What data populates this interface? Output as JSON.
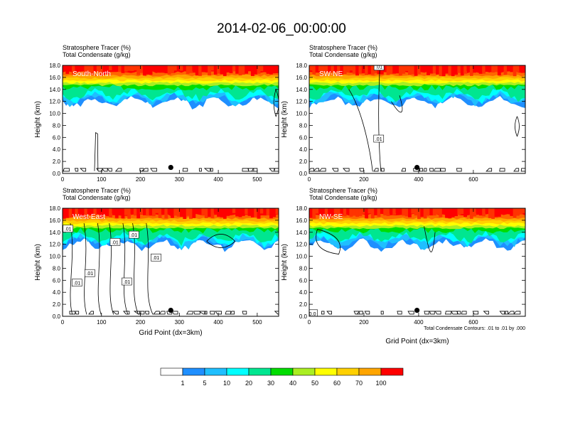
{
  "title": "2014-02-06_00:00:00",
  "footnote": "Total Condensate Contours: .01 to .01 by .000",
  "palette": {
    "levels": [
      "1",
      "5",
      "10",
      "20",
      "30",
      "40",
      "50",
      "60",
      "70",
      "100"
    ],
    "colors": [
      "#ffffff",
      "#1f8fff",
      "#1fbfff",
      "#00ffff",
      "#00e690",
      "#00dd00",
      "#aaee22",
      "#ffff00",
      "#ffd000",
      "#ffa500",
      "#ff6600",
      "#ff0000"
    ]
  },
  "chart_data": [
    {
      "type": "heatmap",
      "label": "South-North",
      "header_line1": "Stratosphere Tracer   (%)",
      "header_line2": "Total Condensate   (g/kg)",
      "ylabel": "Height (km)",
      "xlabel": "",
      "ylim": [
        0,
        18
      ],
      "xlim": [
        0,
        555
      ],
      "y_ticks": [
        "0.0",
        "2.0",
        "4.0",
        "6.0",
        "8.0",
        "10.0",
        "12.0",
        "14.0",
        "16.0",
        "18.0"
      ],
      "x_ticks": [
        {
          "v": 0,
          "label": "0"
        },
        {
          "v": 100,
          "label": "100"
        },
        {
          "v": 200,
          "label": "200"
        },
        {
          "v": 300,
          "label": "300"
        },
        {
          "v": 400,
          "label": "400"
        },
        {
          "v": 500,
          "label": "500"
        }
      ],
      "marker": {
        "x": 278,
        "y": 1.0
      },
      "contour_labels": []
    },
    {
      "type": "heatmap",
      "label": "SW-NE",
      "header_line1": "Stratosphere Tracer   (%)",
      "header_line2": "Total Condensate   (g/kg)",
      "ylabel": "Height (km)",
      "xlabel": "",
      "ylim": [
        0,
        18
      ],
      "xlim": [
        0,
        790
      ],
      "y_ticks": [
        "0.0",
        "2.0",
        "4.0",
        "6.0",
        "8.0",
        "10.0",
        "12.0",
        "14.0",
        "16.0",
        "18.0"
      ],
      "x_ticks": [
        {
          "v": 0,
          "label": "0"
        },
        {
          "v": 200,
          "label": "200"
        },
        {
          "v": 400,
          "label": "400"
        },
        {
          "v": 600,
          "label": "600"
        }
      ],
      "marker": {
        "x": 394,
        "y": 1.0
      },
      "contour_labels": [
        {
          "x": 254,
          "y": 5.8,
          "text": ".01"
        },
        {
          "x": 255,
          "y": 17.8,
          "text": ".01"
        }
      ]
    },
    {
      "type": "heatmap",
      "label": "West-East",
      "header_line1": "Stratosphere Tracer   (%)",
      "header_line2": "Total Condensate   (g/kg)",
      "ylabel": "Height (km)",
      "xlabel": "Grid Point (dx=3km)",
      "ylim": [
        0,
        18
      ],
      "xlim": [
        0,
        555
      ],
      "y_ticks": [
        "0.0",
        "2.0",
        "4.0",
        "6.0",
        "8.0",
        "10.0",
        "12.0",
        "14.0",
        "16.0",
        "18.0"
      ],
      "x_ticks": [
        {
          "v": 0,
          "label": "0"
        },
        {
          "v": 100,
          "label": "100"
        },
        {
          "v": 200,
          "label": "200"
        },
        {
          "v": 300,
          "label": "300"
        },
        {
          "v": 400,
          "label": "400"
        },
        {
          "v": 500,
          "label": "500"
        }
      ],
      "marker": {
        "x": 278,
        "y": 1.0
      },
      "contour_labels": [
        {
          "x": 14,
          "y": 14.6,
          "text": ".01"
        },
        {
          "x": 183,
          "y": 13.6,
          "text": ".01"
        },
        {
          "x": 135,
          "y": 12.4,
          "text": ".01"
        },
        {
          "x": 240,
          "y": 9.8,
          "text": ".01"
        },
        {
          "x": 70,
          "y": 7.2,
          "text": ".01"
        },
        {
          "x": 37,
          "y": 5.6,
          "text": ".01"
        },
        {
          "x": 165,
          "y": 5.8,
          "text": ".01"
        }
      ]
    },
    {
      "type": "heatmap",
      "label": "NW-SE",
      "header_line1": "Stratosphere Tracer   (%)",
      "header_line2": "Total Condensate   (g/kg)",
      "ylabel": "Height (km)",
      "xlabel": "Grid Point (dx=3km)",
      "ylim": [
        0,
        18
      ],
      "xlim": [
        0,
        790
      ],
      "y_ticks": [
        "0.0",
        "2.0",
        "4.0",
        "6.0",
        "8.0",
        "10.0",
        "12.0",
        "14.0",
        "16.0",
        "18.0"
      ],
      "x_ticks": [
        {
          "v": 0,
          "label": "0"
        },
        {
          "v": 200,
          "label": "200"
        },
        {
          "v": 400,
          "label": "400"
        },
        {
          "v": 600,
          "label": "600"
        }
      ],
      "marker": {
        "x": 394,
        "y": 1.0
      },
      "contour_labels": [
        {
          "x": 12,
          "y": 0.5,
          "text": "0.0"
        }
      ]
    }
  ]
}
